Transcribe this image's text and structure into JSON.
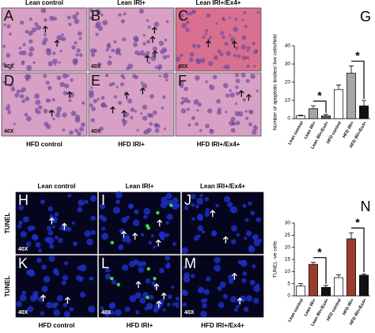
{
  "micrographs": {
    "top_titles": [
      "Lean control",
      "Lean IRI+",
      "Lean IRI+/Ex4+"
    ],
    "top_bottom_titles": [
      "HFD control",
      "HFD IRI+",
      "HFD IRI+/Ex4+"
    ],
    "bottom_titles": [
      "Lean control",
      "Lean IRI+",
      "Lean IRI+/Ex4+"
    ],
    "bottom_bottom_titles": [
      "HFD control",
      "HFD IRI+",
      "HFD IRI+/Ex4+"
    ],
    "row_labels": [
      "TUNEL",
      "TUNEL"
    ],
    "panels": [
      {
        "letter": "A",
        "magnification": "40X"
      },
      {
        "letter": "B",
        "magnification": "40X"
      },
      {
        "letter": "C",
        "magnification": "40X"
      },
      {
        "letter": "D",
        "magnification": "40X"
      },
      {
        "letter": "E",
        "magnification": "40X"
      },
      {
        "letter": "F"
      },
      {
        "letter": "H",
        "magnification": "40X"
      },
      {
        "letter": "I"
      },
      {
        "letter": "J"
      },
      {
        "letter": "K",
        "magnification": "40X"
      },
      {
        "letter": "L",
        "magnification": "40X"
      },
      {
        "letter": "M",
        "magnification": "40X"
      }
    ]
  },
  "chart_data": [
    {
      "type": "bar",
      "panel_label": "G",
      "y_label": "Number of apoptotic bodies/ live cells/field",
      "categories": [
        "Lean control",
        "Lean IRI+",
        "Lean IRI+/Ex4+",
        "HFD control",
        "HFD IRI+",
        "HFD IRI+/Ex4+"
      ],
      "values": [
        1.5,
        5.5,
        1.5,
        16,
        25,
        7
      ],
      "errors": [
        0.5,
        1.5,
        0.8,
        2.5,
        4,
        3
      ],
      "colors": [
        "#ffffff",
        "#a6a6a6",
        "#595959",
        "#ffffff",
        "#a6a6a6",
        "#111111"
      ],
      "ylim": [
        0,
        40
      ],
      "yticks": [
        0,
        10,
        20,
        30,
        40
      ],
      "significance": [
        "*",
        "*"
      ]
    },
    {
      "type": "bar",
      "panel_label": "N",
      "y_label": "TUNEL -ve cells",
      "categories": [
        "Lean control",
        "Lean IRI+",
        "Lean IRI+/Ex4+",
        "HFD control",
        "HFD IRI+",
        "HFD IRI+/Ex4+"
      ],
      "values": [
        4,
        13,
        3.5,
        7.5,
        23.5,
        8.5
      ],
      "errors": [
        1,
        0.8,
        0.8,
        1.2,
        2.5,
        0.5
      ],
      "colors": [
        "#ffffff",
        "#9c3b2a",
        "#111111",
        "#ffffff",
        "#9c3b2a",
        "#111111"
      ],
      "ylim": [
        0,
        30
      ],
      "yticks": [
        0,
        5,
        10,
        15,
        20,
        25,
        30
      ],
      "significance": [
        "*",
        "*"
      ]
    }
  ]
}
